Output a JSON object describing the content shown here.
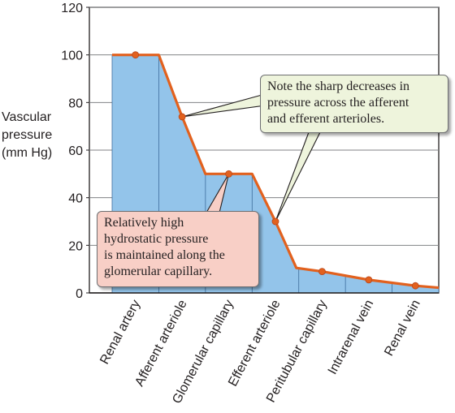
{
  "chart_data": {
    "type": "area",
    "categories": [
      "Renal artery",
      "Afferent arteriole",
      "Glomerular capillary",
      "Efferent arteriole",
      "Peritubular capillary",
      "Intrarenal vein",
      "Renal vein"
    ],
    "values": [
      100,
      74,
      50,
      30,
      9,
      5.5,
      3
    ],
    "ylabel": [
      "Vascular",
      "pressure",
      "(mm Hg)"
    ],
    "ylim": [
      0,
      120
    ],
    "yticks": [
      0,
      20,
      40,
      60,
      80,
      100,
      120
    ],
    "grid": true,
    "annotations": [
      {
        "lines": [
          "Note the sharp decreases in",
          "pressure across the afferent",
          "and efferent arterioles."
        ]
      },
      {
        "lines": [
          "Relatively high",
          "hydrostatic pressure",
          "is maintained along the",
          "glomerular capillary."
        ]
      }
    ]
  },
  "colors": {
    "fill": "#93c4ea",
    "line": "#e2611e",
    "grid": "#808285",
    "axis": "#231f20",
    "note1_bg": "#eef4dc",
    "note2_bg": "#f8cfc6"
  }
}
